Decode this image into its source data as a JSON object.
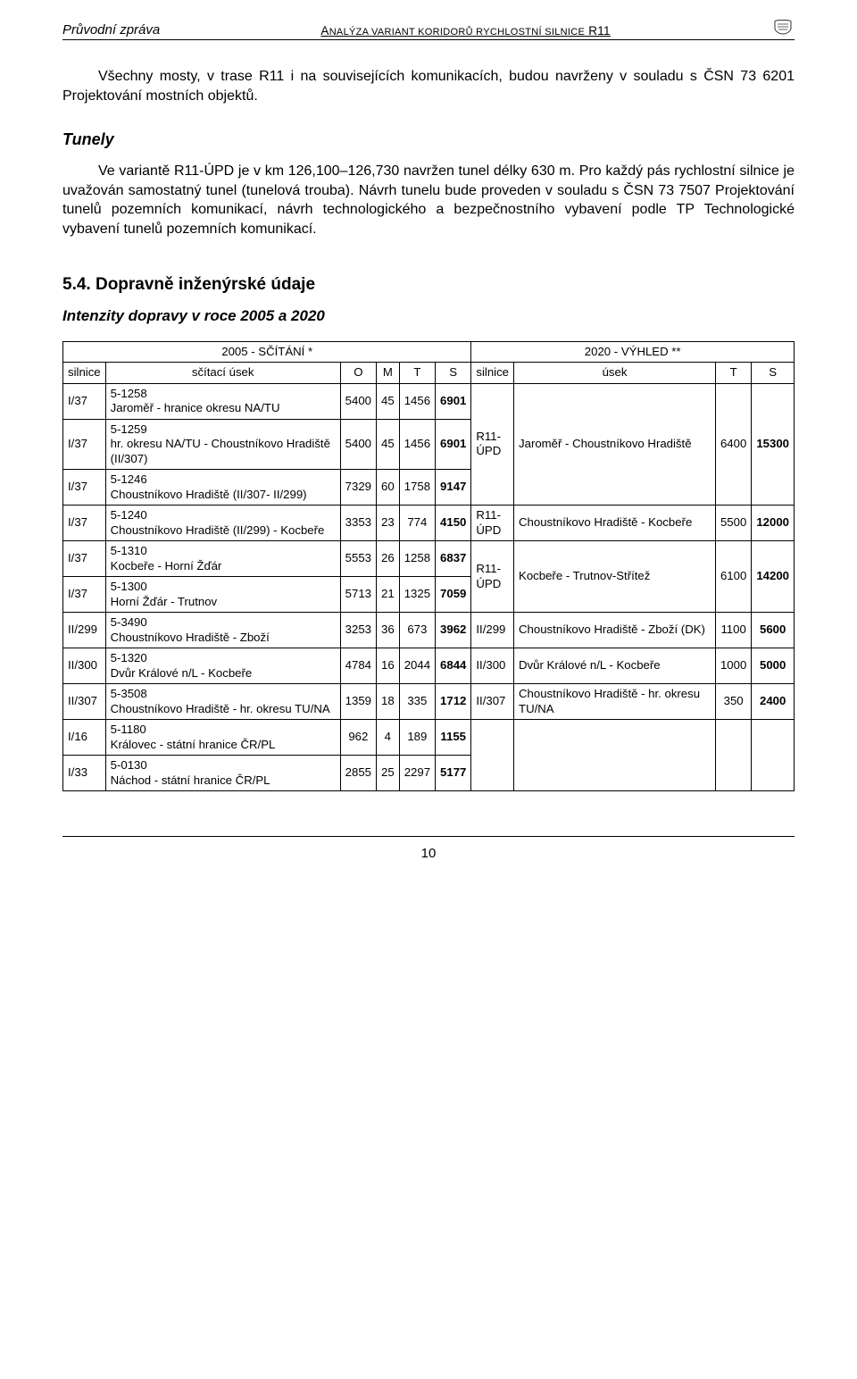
{
  "header": {
    "left": "Průvodní zpráva",
    "center": "ANALÝZA VARIANT KORIDORŮ RYCHLOSTNÍ SILNICE R11"
  },
  "para1": "Všechny mosty, v trase R11 i na souvisejících komunikacích, budou navrženy v souladu s ČSN 73 6201 Projektování mostních objektů.",
  "tunely_title": "Tunely",
  "para2": "Ve variantě R11-ÚPD je v km 126,100–126,730 navržen tunel délky 630 m. Pro každý pás rychlostní silnice je uvažován samostatný tunel (tunelová trouba). Návrh tunelu bude proveden v souladu s ČSN 73 7507 Projektování tunelů pozemních komunikací, návrh technologického a bezpečnostního vybavení podle TP Technologické vybavení tunelů pozemních komunikací.",
  "heading_54": "5.4. Dopravně inženýrské údaje",
  "subheading": "Intenzity dopravy v roce 2005 a 2020",
  "table": {
    "group_left": "2005 - SČÍTÁNÍ *",
    "group_right": "2020 - VÝHLED **",
    "cols_left": [
      "silnice",
      "sčítací úsek",
      "O",
      "M",
      "T",
      "S"
    ],
    "cols_right": [
      "silnice",
      "úsek",
      "T",
      "S"
    ],
    "left_rows": [
      {
        "silnice": "I/37",
        "usek": "5-1258\nJaroměř - hranice okresu NA/TU",
        "O": "5400",
        "M": "45",
        "T": "1456",
        "S": "6901"
      },
      {
        "silnice": "I/37",
        "usek": "5-1259\nhr. okresu NA/TU - Choustníkovo Hradiště (II/307)",
        "O": "5400",
        "M": "45",
        "T": "1456",
        "S": "6901"
      },
      {
        "silnice": "I/37",
        "usek": "5-1246\nChoustníkovo Hradiště (II/307- II/299)",
        "O": "7329",
        "M": "60",
        "T": "1758",
        "S": "9147"
      },
      {
        "silnice": "I/37",
        "usek": "5-1240\nChoustníkovo Hradiště (II/299) - Kocbeře",
        "O": "3353",
        "M": "23",
        "T": "774",
        "S": "4150"
      },
      {
        "silnice": "I/37",
        "usek": "5-1310\nKocbeře - Horní Žďár",
        "O": "5553",
        "M": "26",
        "T": "1258",
        "S": "6837"
      },
      {
        "silnice": "I/37",
        "usek": "5-1300\nHorní Žďár - Trutnov",
        "O": "5713",
        "M": "21",
        "T": "1325",
        "S": "7059"
      },
      {
        "silnice": "II/299",
        "usek": "5-3490\nChoustníkovo Hradiště - Zboží",
        "O": "3253",
        "M": "36",
        "T": "673",
        "S": "3962"
      },
      {
        "silnice": "II/300",
        "usek": "5-1320\nDvůr Králové n/L - Kocbeře",
        "O": "4784",
        "M": "16",
        "T": "2044",
        "S": "6844"
      },
      {
        "silnice": "II/307",
        "usek": "5-3508\nChoustníkovo Hradiště - hr. okresu TU/NA",
        "O": "1359",
        "M": "18",
        "T": "335",
        "S": "1712"
      },
      {
        "silnice": "I/16",
        "usek": "5-1180\nKrálovec - státní hranice ČR/PL",
        "O": "962",
        "M": "4",
        "T": "189",
        "S": "1155"
      },
      {
        "silnice": "I/33",
        "usek": "5-0130\nNáchod - státní hranice ČR/PL",
        "O": "2855",
        "M": "25",
        "T": "2297",
        "S": "5177"
      }
    ],
    "right_groups": [
      {
        "span": 3,
        "silnice": "R11-\nÚPD",
        "usek": "Jaroměř - Choustníkovo Hradiště",
        "T": "6400",
        "S": "15300"
      },
      {
        "span": 1,
        "silnice": "R11-\nÚPD",
        "usek": "Choustníkovo Hradiště - Kocbeře",
        "T": "5500",
        "S": "12000"
      },
      {
        "span": 2,
        "silnice": "R11-\nÚPD",
        "usek": "Kocbeře - Trutnov-Střítež",
        "T": "6100",
        "S": "14200"
      },
      {
        "span": 1,
        "silnice": "II/299",
        "usek": "Choustníkovo Hradiště - Zboží (DK)",
        "T": "1100",
        "S": "5600"
      },
      {
        "span": 1,
        "silnice": "II/300",
        "usek": "Dvůr Králové n/L - Kocbeře",
        "T": "1000",
        "S": "5000"
      },
      {
        "span": 1,
        "silnice": "II/307",
        "usek": "Choustníkovo Hradiště - hr. okresu TU/NA",
        "T": "350",
        "S": "2400"
      },
      {
        "span": 2,
        "silnice": "",
        "usek": "",
        "T": "",
        "S": ""
      }
    ]
  },
  "page_number": "10"
}
